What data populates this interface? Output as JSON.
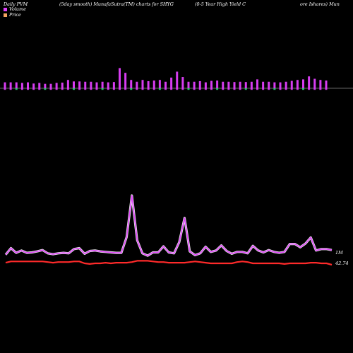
{
  "header": {
    "left": "Daily PVM",
    "mid": "(5day smooth) MunafaSutra(TM) charts for SHYG",
    "right": "(0-5 Year High Yield C",
    "far_right": "ore  Ishares) Mun"
  },
  "legend": [
    {
      "label": "Volume",
      "color": "#e040fb"
    },
    {
      "label": "Price",
      "color": "#f4a460"
    }
  ],
  "chart_data": {
    "type": "line",
    "series": [
      {
        "name": "Volume",
        "color": "#e040fb",
        "values": [
          1.4,
          2.8,
          1.8,
          2.3,
          1.8,
          1.9,
          2.1,
          2.4,
          1.7,
          1.5,
          1.7,
          1.8,
          1.7,
          2.6,
          2.8,
          1.6,
          2.2,
          2.3,
          2.1,
          2.0,
          1.9,
          1.8,
          1.8,
          5.2,
          14.1,
          4.5,
          1.7,
          1.2,
          1.9,
          1.9,
          3.2,
          1.9,
          1.7,
          4.1,
          9.3,
          2.1,
          1.3,
          1.7,
          3.1,
          2.0,
          2.3,
          3.4,
          2.2,
          1.6,
          2.0,
          2.0,
          1.7,
          3.3,
          2.3,
          1.9,
          2.4,
          2.0,
          1.8,
          2.0,
          3.7,
          3.7,
          3.0,
          3.8,
          5.1,
          2.3,
          2.6,
          2.6,
          2.4
        ],
        "label": "1M"
      },
      {
        "name": "Price",
        "color": "#ff2a2a",
        "values": [
          42.9,
          43.0,
          43.0,
          43.0,
          43.0,
          43.0,
          43.0,
          43.0,
          42.95,
          42.9,
          42.95,
          42.95,
          42.95,
          43.0,
          43.0,
          42.85,
          42.8,
          42.85,
          42.85,
          42.9,
          42.85,
          42.9,
          42.9,
          42.9,
          42.95,
          43.05,
          43.05,
          43.05,
          43.0,
          42.95,
          42.95,
          42.9,
          42.9,
          42.9,
          42.9,
          42.95,
          43.0,
          42.95,
          42.9,
          42.85,
          42.85,
          42.85,
          42.85,
          42.85,
          42.95,
          43.0,
          42.95,
          42.85,
          42.85,
          42.85,
          42.85,
          42.85,
          42.85,
          42.8,
          42.85,
          42.85,
          42.85,
          42.85,
          42.9,
          42.9,
          42.85,
          42.85,
          42.74
        ],
        "label": "42.74"
      }
    ],
    "bars": [
      {
        "v": 2.0,
        "c": "#d63cf0"
      },
      {
        "v": 2.0,
        "c": "#d63cf0"
      },
      {
        "v": 2.0,
        "c": "#d63cf0"
      },
      {
        "v": 1.8,
        "c": "#d63cf0"
      },
      {
        "v": 2.0,
        "c": "#d63cf0"
      },
      {
        "v": 1.6,
        "c": "#d63cf0"
      },
      {
        "v": 1.8,
        "c": "#d63cf0"
      },
      {
        "v": 1.5,
        "c": "#d63cf0"
      },
      {
        "v": 1.5,
        "c": "#d63cf0"
      },
      {
        "v": 1.8,
        "c": "#d63cf0"
      },
      {
        "v": 1.9,
        "c": "#d63cf0"
      },
      {
        "v": 2.8,
        "c": "#d63cf0"
      },
      {
        "v": 2.3,
        "c": "#d63cf0"
      },
      {
        "v": 2.3,
        "c": "#d63cf0"
      },
      {
        "v": 2.2,
        "c": "#d63cf0"
      },
      {
        "v": 2.2,
        "c": "#d63cf0"
      },
      {
        "v": 2.0,
        "c": "#d63cf0"
      },
      {
        "v": 2.2,
        "c": "#d63cf0"
      },
      {
        "v": 2.0,
        "c": "#d63cf0"
      },
      {
        "v": 2.1,
        "c": "#d63cf0"
      },
      {
        "v": 6.8,
        "c": "#d63cf0"
      },
      {
        "v": 5.2,
        "c": "#d63cf0"
      },
      {
        "v": 2.8,
        "c": "#d63cf0"
      },
      {
        "v": 2.2,
        "c": "#d63cf0"
      },
      {
        "v": 2.8,
        "c": "#d63cf0"
      },
      {
        "v": 2.4,
        "c": "#d63cf0"
      },
      {
        "v": 2.6,
        "c": "#d63cf0"
      },
      {
        "v": 2.8,
        "c": "#d63cf0"
      },
      {
        "v": 2.2,
        "c": "#d63cf0"
      },
      {
        "v": 3.6,
        "c": "#d63cf0"
      },
      {
        "v": 5.6,
        "c": "#d63cf0"
      },
      {
        "v": 3.8,
        "c": "#d63cf0"
      },
      {
        "v": 2.2,
        "c": "#d63cf0"
      },
      {
        "v": 2.2,
        "c": "#d63cf0"
      },
      {
        "v": 2.4,
        "c": "#d63cf0"
      },
      {
        "v": 2.0,
        "c": "#d63cf0"
      },
      {
        "v": 2.5,
        "c": "#d63cf0"
      },
      {
        "v": 2.6,
        "c": "#d63cf0"
      },
      {
        "v": 2.2,
        "c": "#d63cf0"
      },
      {
        "v": 2.2,
        "c": "#d63cf0"
      },
      {
        "v": 2.1,
        "c": "#d63cf0"
      },
      {
        "v": 2.2,
        "c": "#d63cf0"
      },
      {
        "v": 2.1,
        "c": "#d63cf0"
      },
      {
        "v": 2.2,
        "c": "#d63cf0"
      },
      {
        "v": 3.0,
        "c": "#d63cf0"
      },
      {
        "v": 2.2,
        "c": "#d63cf0"
      },
      {
        "v": 2.2,
        "c": "#d63cf0"
      },
      {
        "v": 2.0,
        "c": "#d63cf0"
      },
      {
        "v": 2.0,
        "c": "#d63cf0"
      },
      {
        "v": 2.2,
        "c": "#d63cf0"
      },
      {
        "v": 2.5,
        "c": "#d63cf0"
      },
      {
        "v": 2.8,
        "c": "#d63cf0"
      },
      {
        "v": 3.0,
        "c": "#d63cf0"
      },
      {
        "v": 4.0,
        "c": "#d63cf0"
      },
      {
        "v": 3.2,
        "c": "#d63cf0"
      },
      {
        "v": 2.8,
        "c": "#d63cf0"
      },
      {
        "v": 2.6,
        "c": "#d63cf0"
      }
    ]
  }
}
